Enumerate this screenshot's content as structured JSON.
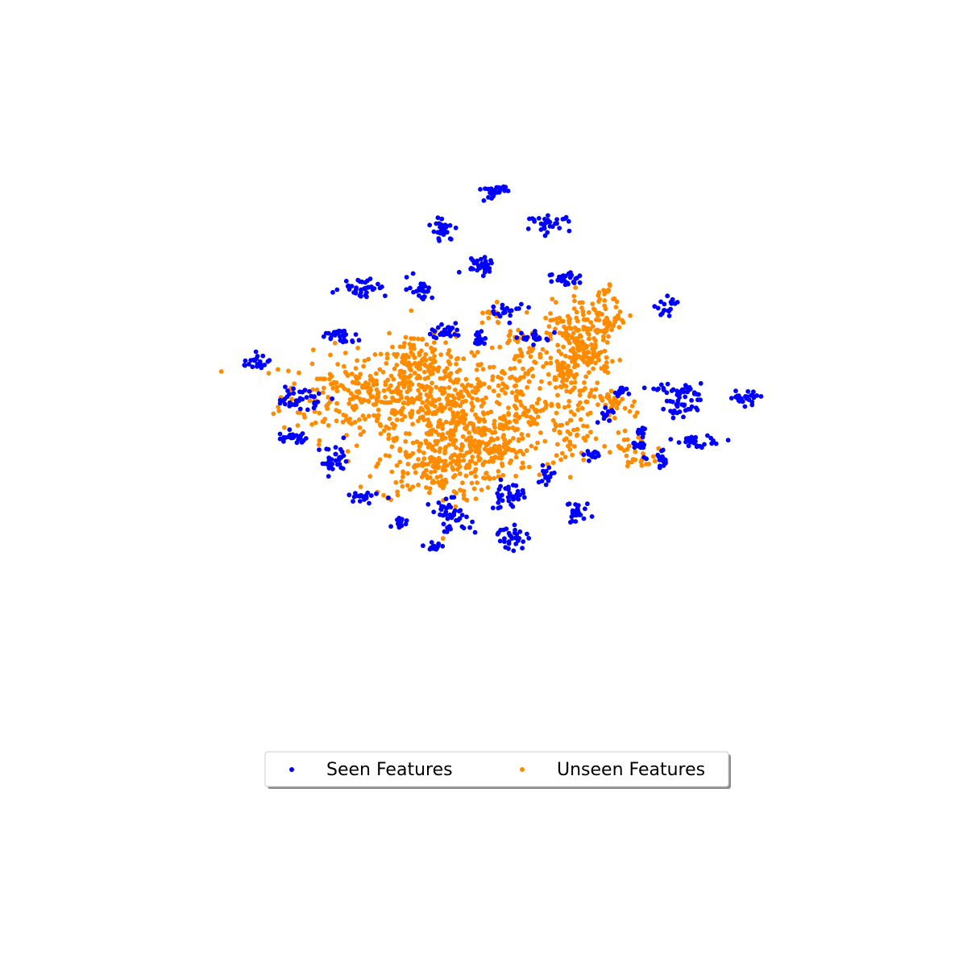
{
  "chart_data": {
    "type": "scatter",
    "title": "",
    "xlabel": "",
    "ylabel": "",
    "axes_visible": false,
    "grid": false,
    "legend_placement": "bottom-center",
    "xlim": [
      0,
      1
    ],
    "ylim": [
      0,
      1
    ],
    "series": [
      {
        "name": "Seen Features",
        "color": "#0000ff",
        "clusters": [
          {
            "center": [
              0.515,
              0.885
            ],
            "spread": [
              0.009,
              0.007
            ],
            "count": 28
          },
          {
            "center": [
              0.59,
              0.83
            ],
            "spread": [
              0.015,
              0.006
            ],
            "count": 32
          },
          {
            "center": [
              0.445,
              0.82
            ],
            "spread": [
              0.008,
              0.01
            ],
            "count": 28
          },
          {
            "center": [
              0.495,
              0.762
            ],
            "spread": [
              0.012,
              0.007
            ],
            "count": 30
          },
          {
            "center": [
              0.618,
              0.738
            ],
            "spread": [
              0.014,
              0.008
            ],
            "count": 30
          },
          {
            "center": [
              0.333,
              0.725
            ],
            "spread": [
              0.016,
              0.008
            ],
            "count": 36
          },
          {
            "center": [
              0.413,
              0.722
            ],
            "spread": [
              0.009,
              0.009
            ],
            "count": 25
          },
          {
            "center": [
              0.535,
              0.686
            ],
            "spread": [
              0.013,
              0.006
            ],
            "count": 20
          },
          {
            "center": [
              0.448,
              0.653
            ],
            "spread": [
              0.01,
              0.007
            ],
            "count": 32
          },
          {
            "center": [
              0.495,
              0.638
            ],
            "spread": [
              0.006,
              0.005
            ],
            "count": 20
          },
          {
            "center": [
              0.573,
              0.641
            ],
            "spread": [
              0.01,
              0.005
            ],
            "count": 22
          },
          {
            "center": [
              0.3,
              0.643
            ],
            "spread": [
              0.013,
              0.006
            ],
            "count": 26
          },
          {
            "center": [
              0.188,
              0.599
            ],
            "spread": [
              0.011,
              0.009
            ],
            "count": 25
          },
          {
            "center": [
              0.755,
              0.692
            ],
            "spread": [
              0.008,
              0.007
            ],
            "count": 18
          },
          {
            "center": [
              0.77,
              0.553
            ],
            "spread": [
              0.016,
              0.006
            ],
            "count": 28
          },
          {
            "center": [
              0.245,
              0.541
            ],
            "spread": [
              0.017,
              0.01
            ],
            "count": 40
          },
          {
            "center": [
              0.691,
              0.553
            ],
            "spread": [
              0.006,
              0.004
            ],
            "count": 12
          },
          {
            "center": [
              0.86,
              0.542
            ],
            "spread": [
              0.011,
              0.006
            ],
            "count": 26
          },
          {
            "center": [
              0.775,
              0.528
            ],
            "spread": [
              0.012,
              0.011
            ],
            "count": 32
          },
          {
            "center": [
              0.67,
              0.513
            ],
            "spread": [
              0.006,
              0.006
            ],
            "count": 12
          },
          {
            "center": [
              0.791,
              0.47
            ],
            "spread": [
              0.013,
              0.005
            ],
            "count": 28
          },
          {
            "center": [
              0.236,
              0.475
            ],
            "spread": [
              0.012,
              0.005
            ],
            "count": 26
          },
          {
            "center": [
              0.718,
              0.485
            ],
            "spread": [
              0.004,
              0.004
            ],
            "count": 10
          },
          {
            "center": [
              0.745,
              0.438
            ],
            "spread": [
              0.008,
              0.007
            ],
            "count": 18
          },
          {
            "center": [
              0.295,
              0.436
            ],
            "spread": [
              0.01,
              0.012
            ],
            "count": 34
          },
          {
            "center": [
              0.652,
              0.446
            ],
            "spread": [
              0.006,
              0.006
            ],
            "count": 14
          },
          {
            "center": [
              0.587,
              0.416
            ],
            "spread": [
              0.005,
              0.008
            ],
            "count": 16
          },
          {
            "center": [
              0.713,
              0.463
            ],
            "spread": [
              0.007,
              0.005
            ],
            "count": 14
          },
          {
            "center": [
              0.333,
              0.376
            ],
            "spread": [
              0.01,
              0.005
            ],
            "count": 20
          },
          {
            "center": [
              0.533,
              0.38
            ],
            "spread": [
              0.012,
              0.011
            ],
            "count": 38
          },
          {
            "center": [
              0.455,
              0.346
            ],
            "spread": [
              0.014,
              0.013
            ],
            "count": 44
          },
          {
            "center": [
              0.63,
              0.351
            ],
            "spread": [
              0.009,
              0.01
            ],
            "count": 26
          },
          {
            "center": [
              0.54,
              0.313
            ],
            "spread": [
              0.01,
              0.011
            ],
            "count": 30
          },
          {
            "center": [
              0.384,
              0.335
            ],
            "spread": [
              0.006,
              0.005
            ],
            "count": 16
          },
          {
            "center": [
              0.435,
              0.296
            ],
            "spread": [
              0.006,
              0.004
            ],
            "count": 14
          }
        ]
      },
      {
        "name": "Unseen Features",
        "color": "#ff8c00",
        "clusters": [
          {
            "center": [
              0.33,
              0.545
            ],
            "spread": [
              0.055,
              0.035
            ],
            "count": 220
          },
          {
            "center": [
              0.42,
              0.555
            ],
            "spread": [
              0.045,
              0.04
            ],
            "count": 220
          },
          {
            "center": [
              0.47,
              0.49
            ],
            "spread": [
              0.045,
              0.045
            ],
            "count": 220
          },
          {
            "center": [
              0.43,
              0.43
            ],
            "spread": [
              0.04,
              0.03
            ],
            "count": 160
          },
          {
            "center": [
              0.52,
              0.46
            ],
            "spread": [
              0.03,
              0.03
            ],
            "count": 90
          },
          {
            "center": [
              0.54,
              0.56
            ],
            "spread": [
              0.025,
              0.03
            ],
            "count": 80
          },
          {
            "center": [
              0.41,
              0.615
            ],
            "spread": [
              0.025,
              0.015
            ],
            "count": 40
          },
          {
            "center": [
              0.62,
              0.65
            ],
            "spread": [
              0.02,
              0.015
            ],
            "count": 45
          },
          {
            "center": [
              0.635,
              0.68
            ],
            "spread": [
              0.02,
              0.02
            ],
            "count": 40
          },
          {
            "center": [
              0.658,
              0.605
            ],
            "spread": [
              0.015,
              0.013
            ],
            "count": 40
          },
          {
            "center": [
              0.578,
              0.51
            ],
            "spread": [
              0.035,
              0.018
            ],
            "count": 50
          },
          {
            "center": [
              0.62,
              0.47
            ],
            "spread": [
              0.02,
              0.025
            ],
            "count": 40
          },
          {
            "center": [
              0.7,
              0.46
            ],
            "spread": [
              0.012,
              0.01
            ],
            "count": 18
          },
          {
            "center": [
              0.67,
              0.72
            ],
            "spread": [
              0.008,
              0.006
            ],
            "count": 10
          },
          {
            "center": [
              0.725,
              0.435
            ],
            "spread": [
              0.01,
              0.01
            ],
            "count": 15
          },
          {
            "center": [
              0.51,
              0.677
            ],
            "spread": [
              0.01,
              0.008
            ],
            "count": 14
          }
        ],
        "paths": [
          {
            "from": [
              0.6,
              0.575
            ],
            "to": [
              0.68,
              0.685
            ],
            "spread": 0.012,
            "count": 130
          },
          {
            "from": [
              0.6,
              0.57
            ],
            "to": [
              0.7,
              0.52
            ],
            "spread": 0.009,
            "count": 70
          },
          {
            "from": [
              0.54,
              0.65
            ],
            "to": [
              0.6,
              0.58
            ],
            "spread": 0.01,
            "count": 30
          }
        ]
      }
    ]
  },
  "legend": {
    "seen_label": "Seen Features",
    "unseen_label": "Unseen Features"
  }
}
